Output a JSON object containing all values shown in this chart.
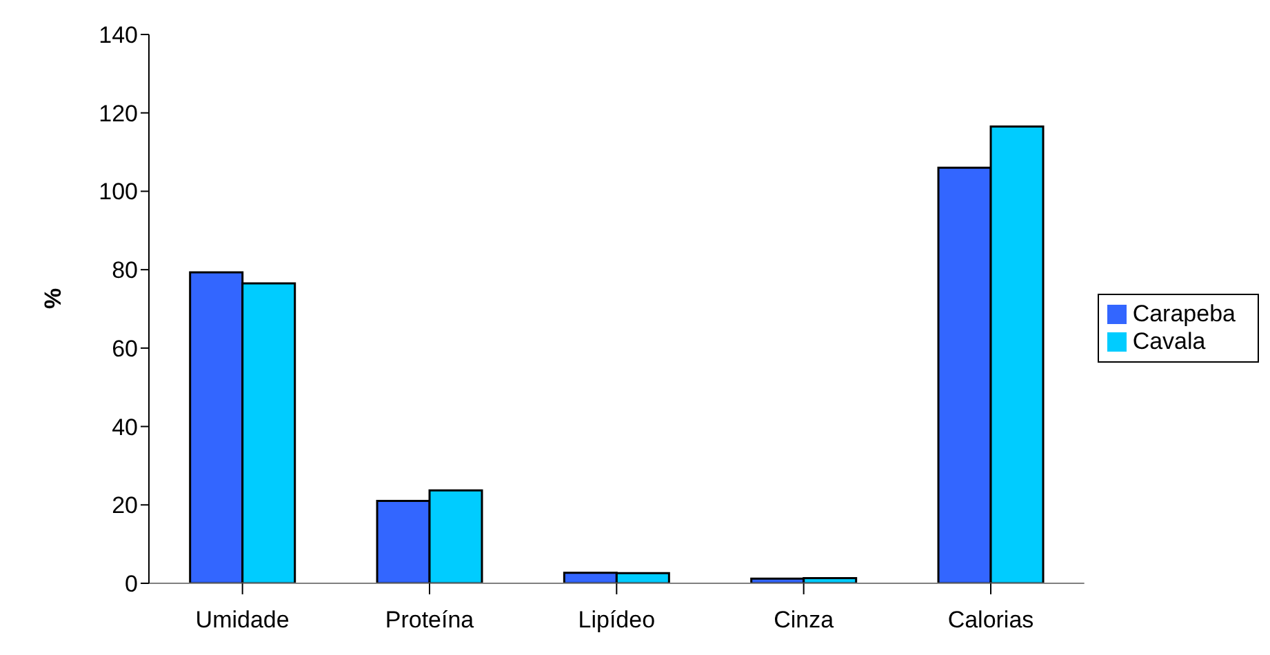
{
  "chart_data": {
    "type": "bar",
    "ylabel": "%",
    "categories": [
      "Umidade",
      "Proteína",
      "Lipídeo",
      "Cinza",
      "Calorias"
    ],
    "series": [
      {
        "name": "Carapeba",
        "color": "#3366ff",
        "values": [
          79.3,
          21,
          2.7,
          1.2,
          106
        ]
      },
      {
        "name": "Cavala",
        "color": "#00ccff",
        "values": [
          76.5,
          23.7,
          2.6,
          1.3,
          116.5
        ]
      }
    ],
    "ylim": [
      0,
      140
    ],
    "yticks": [
      0,
      20,
      40,
      60,
      80,
      100,
      120,
      140
    ],
    "grid": false,
    "legend": "right"
  }
}
